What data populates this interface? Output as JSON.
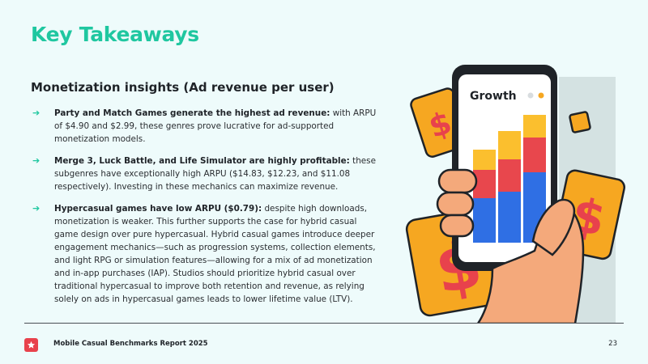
{
  "page": {
    "title": "Key Takeaways",
    "subtitle": "Monetization insights (Ad revenue per user)",
    "bullets": [
      {
        "bold": "Party and Match Games generate the highest ad revenue:",
        "text": " with ARPU of $4.90 and $2.99, these genres prove lucrative for ad-supported monetization models."
      },
      {
        "bold": "Merge 3, Luck Battle, and Life Simulator are highly profitable:",
        "text": " these subgenres have exceptionally high ARPU ($14.83, $12.23, and $11.08 respectively). Investing in these mechanics can maximize revenue."
      },
      {
        "bold": "Hypercasual games have low ARPU ($0.79):",
        "text": " despite high downloads, monetization is weaker. This further supports the case for hybrid casual game design over pure hypercasual. Hybrid casual games introduce deeper engagement mechanics—such as progression systems, collection elements, and light RPG or simulation features—allowing for a mix of ad monetization and in-app purchases (IAP). Studios should prioritize hybrid casual over traditional hypercasual to improve both retention and revenue, as relying solely on ads in hypercasual games leads to lower lifetime value (LTV)."
      }
    ],
    "bullet_arrow": "➔"
  },
  "illustration": {
    "phone_title": "Growth",
    "coin_symbol": "$"
  },
  "footer": {
    "report_name": "Mobile Casual Benchmarks Report 2025",
    "page_number": "23",
    "logo_icon": "star-icon"
  },
  "colors": {
    "title": "#1fc7a0",
    "accent_red": "#e8424c",
    "coin_orange": "#f6a721",
    "bar_yellow": "#fbbf2e",
    "bar_red": "#e8474d",
    "bar_blue": "#2f6fe4",
    "skin": "#f4a97b",
    "background": "#eefbfb"
  }
}
